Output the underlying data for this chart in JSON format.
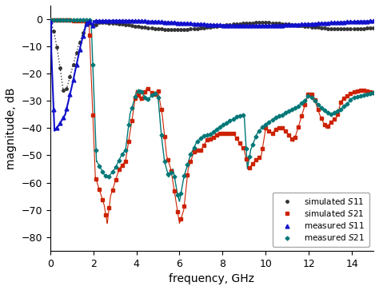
{
  "title": "",
  "xlabel": "frequency, GHz",
  "ylabel": "magnitude, dB",
  "xlim": [
    0,
    15
  ],
  "ylim": [
    -85,
    5
  ],
  "yticks": [
    0,
    -10,
    -20,
    -30,
    -40,
    -50,
    -60,
    -70,
    -80
  ],
  "xticks": [
    0,
    2,
    4,
    6,
    8,
    10,
    12,
    14
  ],
  "background_color": "#ffffff",
  "legend_labels": [
    "simulated $S11$",
    "simulated $S21$",
    "measured $S11$",
    "measured $S21$"
  ],
  "colors": {
    "sim_s11": "#333333",
    "sim_s21": "#cc2200",
    "meas_s11": "#1111cc",
    "meas_s21": "#007777"
  },
  "figsize": [
    4.74,
    3.63
  ],
  "dpi": 100
}
